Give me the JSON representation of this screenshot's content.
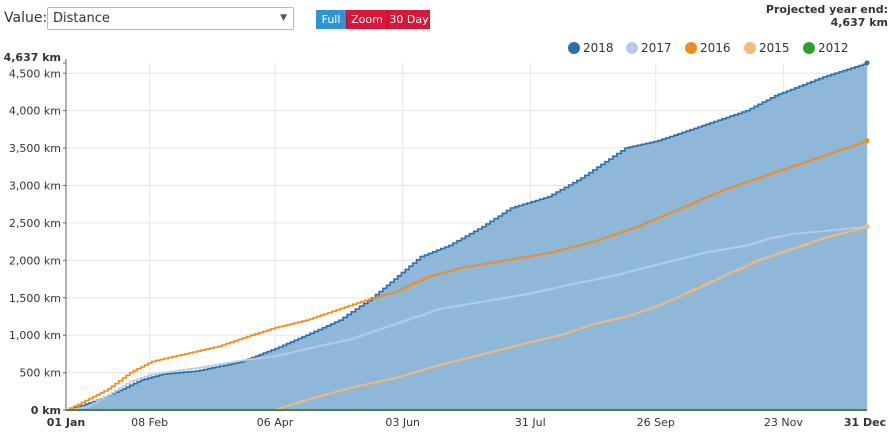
{
  "controls": {
    "value_label": "Value:",
    "select_value": "Distance",
    "buttons": {
      "full": "Full",
      "zoom": "Zoom",
      "thirty_day": "30 Day"
    },
    "projection_label": "Projected year end:",
    "projection_value": "4,637 km"
  },
  "colors": {
    "2018": "#2a6fab",
    "2018_fill": "#8fb7d8",
    "2017": "#b7cbe6",
    "2016": "#f28a1c",
    "2015": "#f7b978",
    "2012": "#2ca02c",
    "full_button": "#2f93d4",
    "red_button": "#d6173a"
  },
  "chart_data": {
    "type": "area",
    "x_unit": "day_of_year",
    "x_range": [
      1,
      365
    ],
    "x_ticks": [
      {
        "day": 1,
        "label": "01 Jan"
      },
      {
        "day": 39,
        "label": "08 Feb"
      },
      {
        "day": 96,
        "label": "06 Apr"
      },
      {
        "day": 154,
        "label": "03 Jun"
      },
      {
        "day": 212,
        "label": "31 Jul"
      },
      {
        "day": 269,
        "label": "26 Sep"
      },
      {
        "day": 327,
        "label": "23 Nov"
      },
      {
        "day": 365,
        "label": "31 Dec"
      }
    ],
    "y_ticks": [
      {
        "value": 0,
        "label": "0 km"
      },
      {
        "value": 500,
        "label": "500 km"
      },
      {
        "value": 1000,
        "label": "1,000 km"
      },
      {
        "value": 1500,
        "label": "1,500 km"
      },
      {
        "value": 2000,
        "label": "2,000 km"
      },
      {
        "value": 2500,
        "label": "2,500 km"
      },
      {
        "value": 3000,
        "label": "3,000 km"
      },
      {
        "value": 3500,
        "label": "3,500 km"
      },
      {
        "value": 4000,
        "label": "4,000 km"
      },
      {
        "value": 4500,
        "label": "4,500 km"
      },
      {
        "value": 4637,
        "label": "4,637 km"
      }
    ],
    "ylim": [
      0,
      4637
    ],
    "grid": true,
    "legend_position": "top-right",
    "series": [
      {
        "name": "2018",
        "filled": true,
        "points": [
          [
            1,
            0
          ],
          [
            8,
            60
          ],
          [
            15,
            130
          ],
          [
            25,
            260
          ],
          [
            35,
            400
          ],
          [
            45,
            480
          ],
          [
            60,
            520
          ],
          [
            80,
            640
          ],
          [
            96,
            820
          ],
          [
            110,
            1000
          ],
          [
            125,
            1200
          ],
          [
            140,
            1500
          ],
          [
            150,
            1750
          ],
          [
            162,
            2050
          ],
          [
            175,
            2200
          ],
          [
            190,
            2450
          ],
          [
            203,
            2700
          ],
          [
            220,
            2850
          ],
          [
            235,
            3100
          ],
          [
            255,
            3500
          ],
          [
            270,
            3600
          ],
          [
            290,
            3800
          ],
          [
            310,
            4000
          ],
          [
            323,
            4200
          ],
          [
            345,
            4450
          ],
          [
            365,
            4637
          ]
        ]
      },
      {
        "name": "2017",
        "filled": false,
        "points": [
          [
            1,
            0
          ],
          [
            10,
            40
          ],
          [
            20,
            200
          ],
          [
            30,
            380
          ],
          [
            40,
            480
          ],
          [
            60,
            560
          ],
          [
            80,
            660
          ],
          [
            96,
            720
          ],
          [
            110,
            820
          ],
          [
            130,
            950
          ],
          [
            150,
            1150
          ],
          [
            170,
            1350
          ],
          [
            190,
            1450
          ],
          [
            210,
            1550
          ],
          [
            230,
            1680
          ],
          [
            250,
            1800
          ],
          [
            270,
            1950
          ],
          [
            290,
            2100
          ],
          [
            310,
            2200
          ],
          [
            320,
            2290
          ],
          [
            330,
            2350
          ],
          [
            365,
            2450
          ]
        ]
      },
      {
        "name": "2016",
        "filled": false,
        "points": [
          [
            1,
            0
          ],
          [
            8,
            100
          ],
          [
            20,
            280
          ],
          [
            30,
            500
          ],
          [
            40,
            650
          ],
          [
            55,
            750
          ],
          [
            70,
            850
          ],
          [
            85,
            1000
          ],
          [
            96,
            1100
          ],
          [
            110,
            1200
          ],
          [
            120,
            1300
          ],
          [
            135,
            1450
          ],
          [
            150,
            1580
          ],
          [
            165,
            1780
          ],
          [
            180,
            1900
          ],
          [
            200,
            2000
          ],
          [
            220,
            2100
          ],
          [
            240,
            2250
          ],
          [
            260,
            2450
          ],
          [
            280,
            2700
          ],
          [
            300,
            2950
          ],
          [
            320,
            3150
          ],
          [
            340,
            3350
          ],
          [
            365,
            3600
          ]
        ]
      },
      {
        "name": "2015",
        "filled": false,
        "points": [
          [
            1,
            0
          ],
          [
            95,
            0
          ],
          [
            110,
            140
          ],
          [
            130,
            300
          ],
          [
            150,
            430
          ],
          [
            170,
            600
          ],
          [
            190,
            750
          ],
          [
            210,
            900
          ],
          [
            225,
            1000
          ],
          [
            240,
            1150
          ],
          [
            255,
            1250
          ],
          [
            270,
            1400
          ],
          [
            285,
            1600
          ],
          [
            300,
            1800
          ],
          [
            315,
            2000
          ],
          [
            330,
            2150
          ],
          [
            345,
            2300
          ],
          [
            365,
            2450
          ]
        ]
      },
      {
        "name": "2012",
        "filled": false,
        "points": [
          [
            1,
            0
          ],
          [
            365,
            0
          ]
        ]
      }
    ]
  }
}
